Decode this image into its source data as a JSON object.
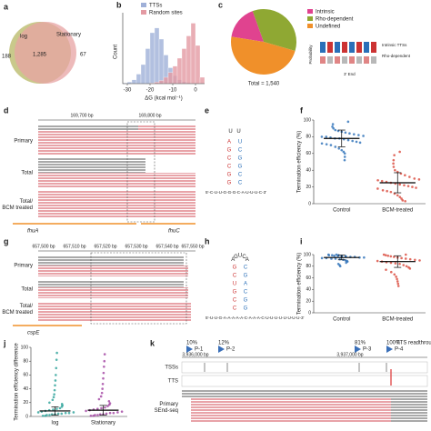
{
  "panel_labels": [
    "a",
    "b",
    "c",
    "d",
    "e",
    "f",
    "g",
    "h",
    "i",
    "j",
    "k"
  ],
  "venn": {
    "left": "log",
    "right": "Stationary",
    "left_only": "188",
    "both": "1,285",
    "right_only": "67",
    "colors": [
      "#c9c98b",
      "#e7a3a3"
    ]
  },
  "chart_data": [
    {
      "type": "histogram",
      "xlabel": "ΔG (kcal mol⁻¹)",
      "ylabel": "Count",
      "bins": [
        -32,
        -30,
        -28,
        -26,
        -24,
        -22,
        -20,
        -18,
        -16,
        -14,
        -12,
        -10,
        -8,
        -6,
        -4,
        -2,
        0,
        2,
        4
      ],
      "series": [
        {
          "name": "TTSs",
          "color": "#9fb0d8",
          "values": [
            2,
            5,
            12,
            30,
            60,
            110,
            160,
            175,
            140,
            90,
            50,
            25,
            12,
            6,
            3,
            1,
            0,
            0
          ]
        },
        {
          "name": "Random sites",
          "color": "#e39aa3",
          "values": [
            0,
            0,
            0,
            0,
            0,
            0,
            2,
            5,
            10,
            20,
            35,
            55,
            80,
            110,
            150,
            190,
            120,
            20
          ]
        }
      ],
      "xlim": [
        -32,
        4
      ],
      "xticks": [
        -30,
        -20,
        -10,
        0
      ],
      "ylim": [
        0,
        200
      ]
    },
    {
      "type": "pie",
      "categories": [
        "Intrinsic",
        "Rho-dependent",
        "Undefined"
      ],
      "values": [
        17,
        35,
        48
      ],
      "colors": [
        "#e0438f",
        "#8fa833",
        "#f0902a"
      ],
      "annotation": "Total = 1,540",
      "inset_labels": [
        "Intrinsic TTSs",
        "Rho-dependent",
        "Probability",
        "3' End"
      ]
    },
    {
      "type": "dot",
      "ylabel": "Termination efficiency (%)",
      "ylim": [
        0,
        100
      ],
      "yticks": [
        0,
        20,
        40,
        60,
        80,
        100
      ],
      "series": [
        {
          "name": "Control",
          "color": "#2a6fb8",
          "mean": 78,
          "sd": 10,
          "values": [
            95,
            92,
            90,
            88,
            87,
            86,
            85,
            84,
            83,
            82,
            81,
            80,
            80,
            79,
            78,
            78,
            77,
            76,
            75,
            74,
            73,
            72,
            71,
            70,
            68,
            66,
            64,
            62,
            60,
            56,
            52,
            98
          ]
        },
        {
          "name": "BCM-treated",
          "color": "#d9473a",
          "mean": 25,
          "sd": 12,
          "values": [
            58,
            52,
            48,
            44,
            40,
            38,
            36,
            34,
            32,
            30,
            29,
            28,
            27,
            26,
            25,
            24,
            23,
            22,
            21,
            20,
            19,
            18,
            16,
            15,
            14,
            12,
            10,
            8,
            6,
            4,
            62,
            3
          ]
        }
      ]
    },
    {
      "type": "dot",
      "ylabel": "Termination efficiency (%)",
      "ylim": [
        0,
        100
      ],
      "yticks": [
        0,
        20,
        40,
        60,
        80,
        100
      ],
      "series": [
        {
          "name": "Control",
          "color": "#2a6fb8",
          "mean": 95,
          "sd": 4,
          "values": [
            100,
            99,
            99,
            98,
            98,
            97,
            97,
            96,
            96,
            95,
            95,
            94,
            94,
            93,
            93,
            92,
            91,
            90,
            89,
            88,
            86,
            84,
            82,
            80,
            100,
            99,
            98,
            97
          ]
        },
        {
          "name": "BCM-treated",
          "color": "#d9473a",
          "mean": 88,
          "sd": 10,
          "values": [
            100,
            99,
            98,
            97,
            96,
            95,
            94,
            93,
            92,
            91,
            90,
            89,
            88,
            87,
            86,
            85,
            84,
            82,
            80,
            78,
            76,
            74,
            70,
            66,
            62,
            58,
            54,
            50,
            46,
            100
          ]
        }
      ]
    },
    {
      "type": "dot",
      "ylabel": "Termination efficiency difference",
      "ylim": [
        0,
        100
      ],
      "yticks": [
        0,
        20,
        40,
        60,
        80,
        100
      ],
      "series": [
        {
          "name": "log",
          "color": "#2aa198",
          "mean": 8,
          "sd": 6,
          "values": [
            1,
            1,
            2,
            2,
            3,
            3,
            4,
            4,
            5,
            5,
            6,
            6,
            7,
            8,
            9,
            10,
            11,
            12,
            14,
            16,
            18,
            20,
            24,
            28,
            32,
            38,
            45,
            52,
            60,
            70,
            82,
            92
          ]
        },
        {
          "name": "Stationary",
          "color": "#a040a0",
          "mean": 9,
          "sd": 7,
          "values": [
            1,
            1,
            2,
            2,
            3,
            3,
            4,
            5,
            5,
            6,
            7,
            8,
            9,
            10,
            11,
            12,
            13,
            15,
            17,
            19,
            22,
            25,
            29,
            34,
            40,
            47,
            55,
            63,
            72,
            80,
            90
          ]
        }
      ]
    }
  ],
  "track_d": {
    "coords": [
      "169,700 bp",
      "169,800 bp"
    ],
    "rows": [
      [
        "Primary"
      ],
      [
        "Total"
      ],
      [
        "Total/",
        "BCM treated"
      ]
    ],
    "genes": [
      "fhuA",
      "fhuC"
    ]
  },
  "hairpin_e": {
    "loop": [
      "U",
      "U"
    ],
    "pairs": [
      [
        "A",
        "U"
      ],
      [
        "G",
        "C"
      ],
      [
        "C",
        "G"
      ],
      [
        "C",
        "G"
      ],
      [
        "G",
        "C"
      ],
      [
        "G",
        "C"
      ]
    ],
    "tail": "5'-C-U-U-G-G-G-C-A-U-U-U-C-3'"
  },
  "track_g": {
    "coords": [
      "657,500 bp",
      "657,510 bp",
      "657,520 bp",
      "657,530 bp",
      "657,540 bp",
      "657,550 bp"
    ],
    "rows": [
      [
        "Primary"
      ],
      [
        "Total"
      ],
      [
        "Total/",
        "BCM treated"
      ]
    ],
    "genes": [
      "cspE"
    ]
  },
  "hairpin_h": {
    "loop": [
      "A",
      "G",
      "U",
      "C",
      "A"
    ],
    "pairs": [
      [
        "G",
        "C"
      ],
      [
        "C",
        "G"
      ],
      [
        "U",
        "A"
      ],
      [
        "G",
        "C"
      ],
      [
        "C",
        "G"
      ],
      [
        "C",
        "G"
      ]
    ],
    "tail": "5'-U-U-G-A-A-A-A-A-C-A-A-A-C-U-U-U-U-U-U-U-U-3'"
  },
  "track_k": {
    "coords": [
      "3,936,000 bp",
      "3,937,000 bp"
    ],
    "promoters": [
      {
        "pct": "10%",
        "label": "P-1"
      },
      {
        "pct": "12%",
        "label": "P-2"
      },
      {
        "pct": "81%",
        "label": "P-3"
      },
      {
        "pct": "100%",
        "label": "P-4"
      }
    ],
    "readthrough": "TTS readthrough",
    "rows": [
      [
        "TSSs"
      ],
      [
        "TTS"
      ],
      [
        "Primary",
        "SEnd-seq"
      ]
    ]
  }
}
